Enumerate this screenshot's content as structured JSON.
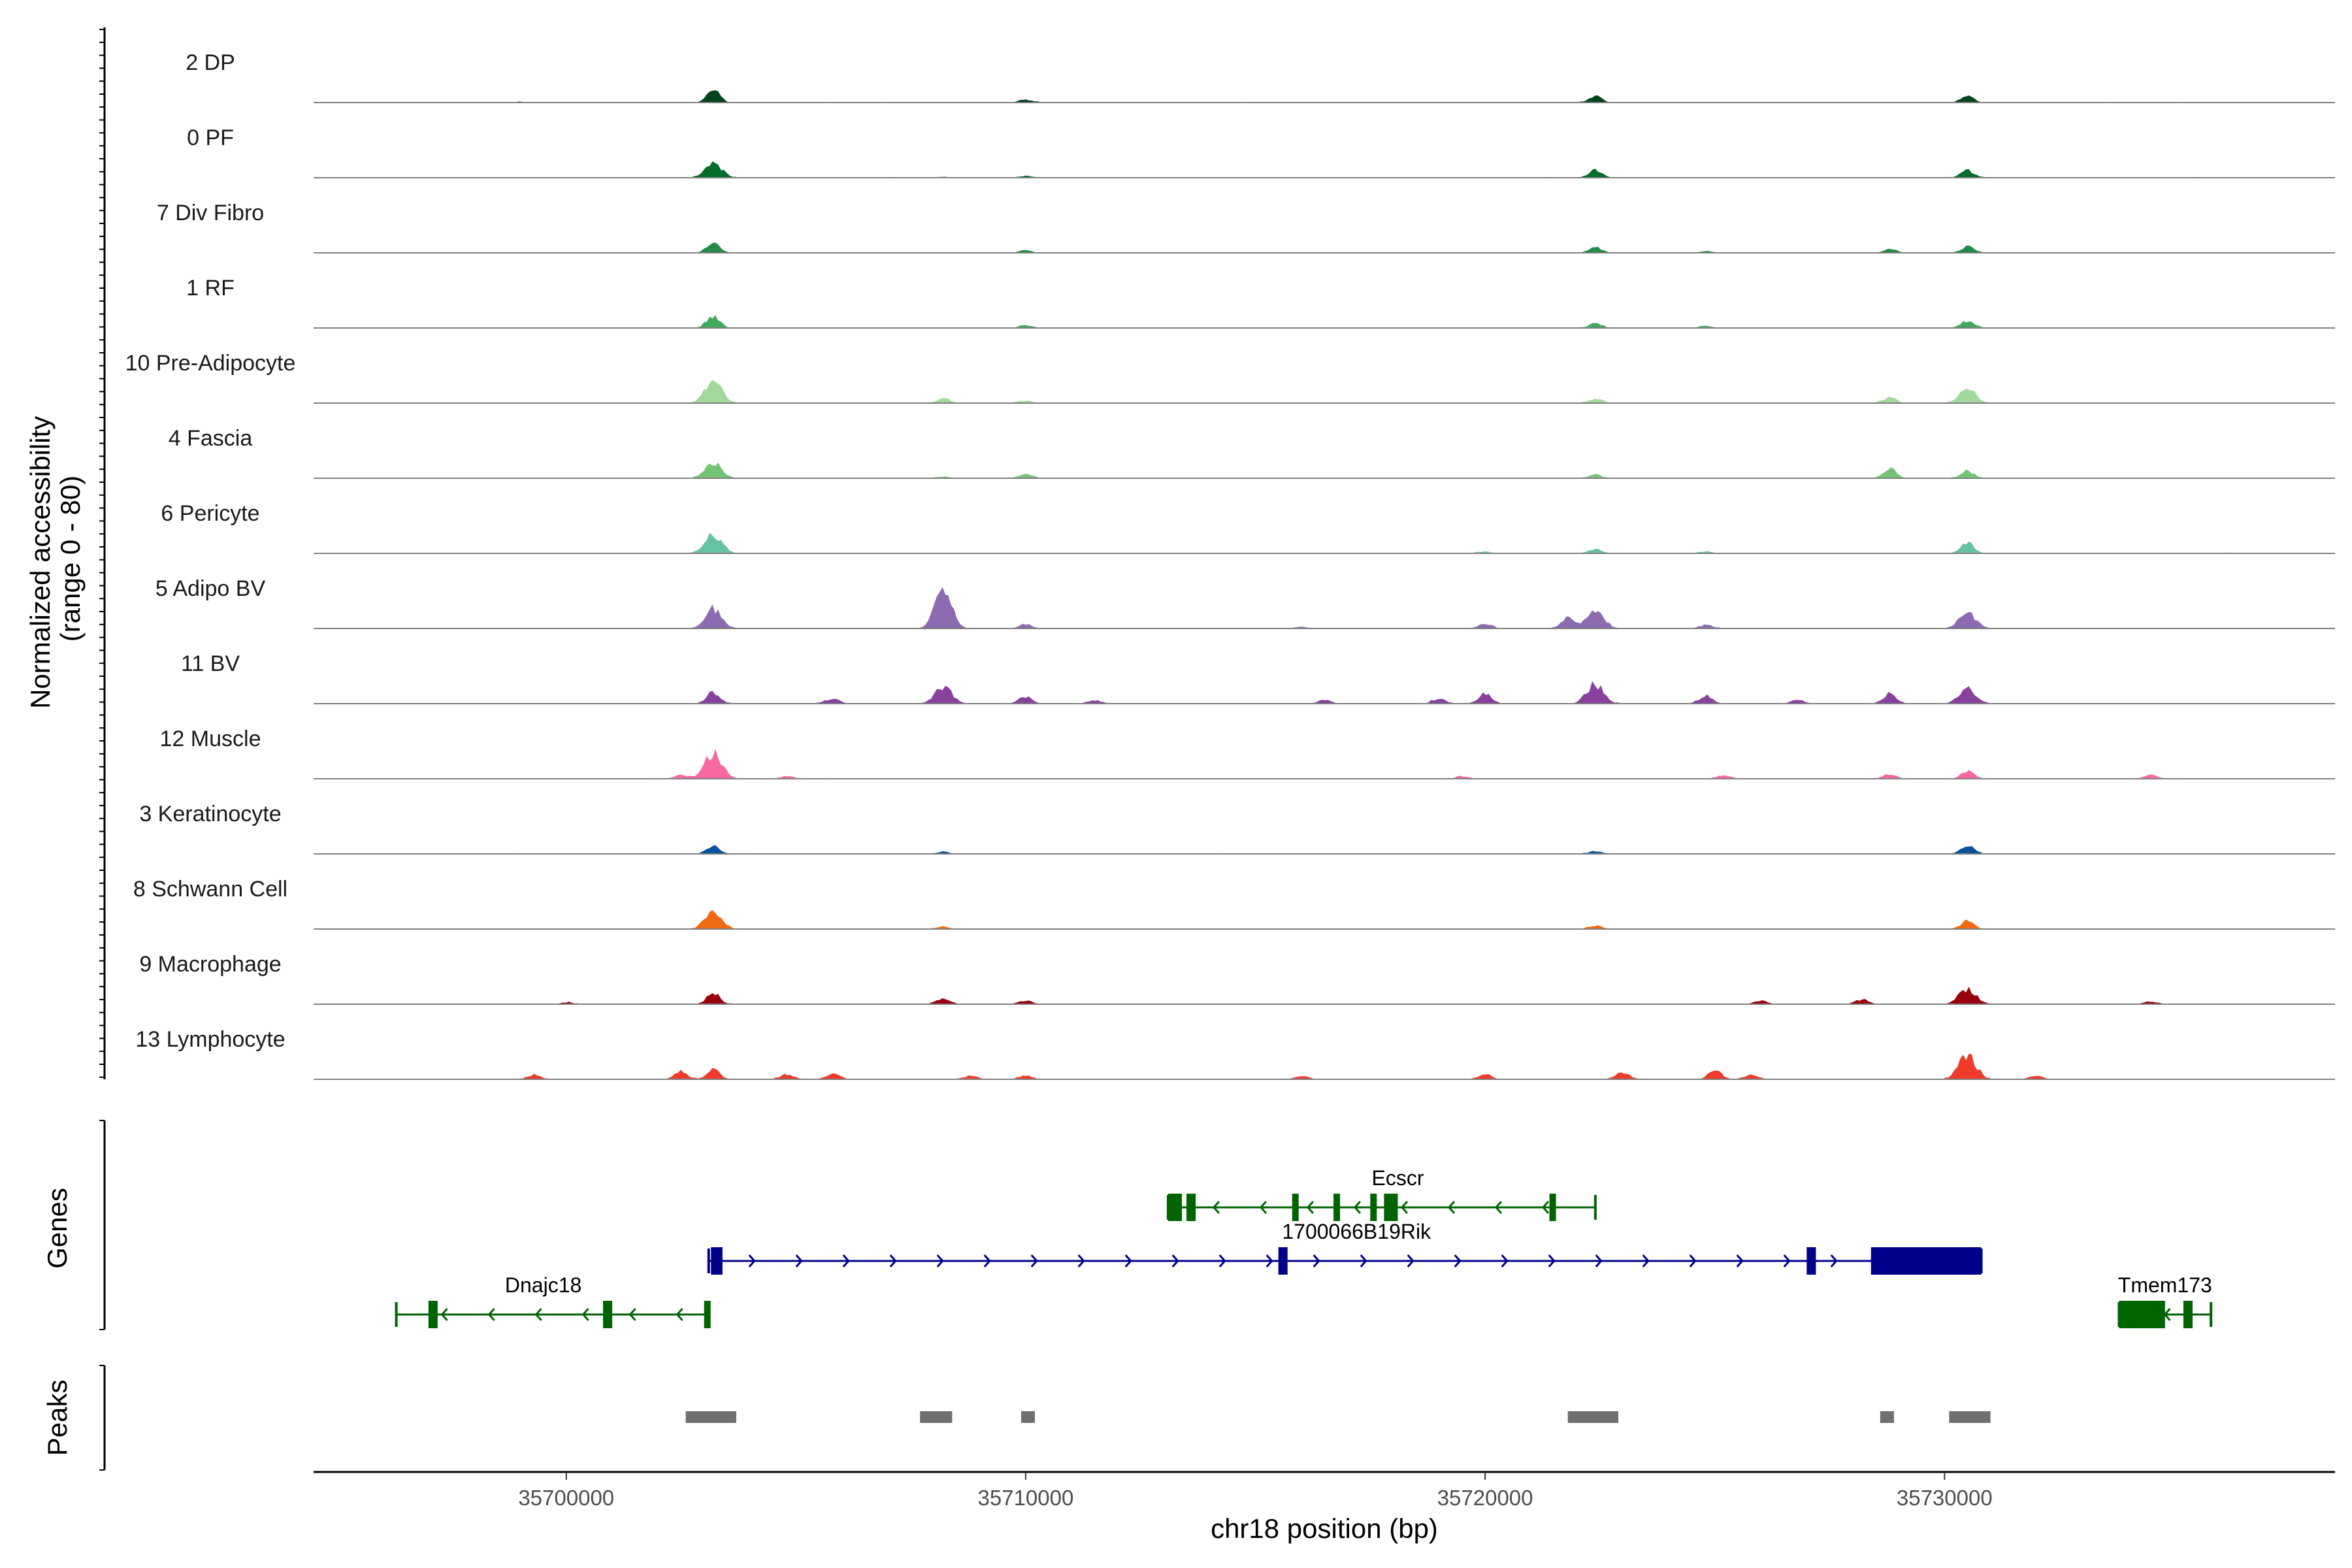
{
  "chart_data": {
    "type": "area",
    "title": "",
    "chromosome": "chr18",
    "xlabel": "chr18 position (bp)",
    "ylabel": "Normalized accessibility\n(range 0 - 80)",
    "y_range": [
      0,
      80
    ],
    "xlim": [
      35694500,
      35738500
    ],
    "x_ticks": [
      35700000,
      35710000,
      35720000,
      35730000
    ],
    "x_tick_labels": [
      "35700000",
      "35710000",
      "35720000",
      "35730000"
    ],
    "tracks": [
      {
        "name": "2 DP",
        "color": "#00441b",
        "peaks": [
          [
            35703200,
            14
          ],
          [
            35722400,
            7
          ],
          [
            35730500,
            7
          ],
          [
            35710000,
            3
          ],
          [
            35699000,
            1
          ]
        ]
      },
      {
        "name": "0 PF",
        "color": "#006d2c",
        "peaks": [
          [
            35703200,
            16
          ],
          [
            35722400,
            9
          ],
          [
            35730500,
            8
          ],
          [
            35710000,
            2
          ],
          [
            35708200,
            1
          ]
        ]
      },
      {
        "name": "7 Div Fibro",
        "color": "#238b45",
        "peaks": [
          [
            35703200,
            11
          ],
          [
            35722400,
            6
          ],
          [
            35730500,
            7
          ],
          [
            35728800,
            4
          ],
          [
            35710000,
            3
          ],
          [
            35724800,
            2
          ]
        ]
      },
      {
        "name": "1 RF",
        "color": "#41ab5d",
        "peaks": [
          [
            35703200,
            14
          ],
          [
            35722400,
            5
          ],
          [
            35730500,
            8
          ],
          [
            35710000,
            3
          ],
          [
            35724800,
            2
          ]
        ]
      },
      {
        "name": "10 Pre-Adipocyte",
        "color": "#a1d99b",
        "peaks": [
          [
            35703200,
            24
          ],
          [
            35722400,
            5
          ],
          [
            35730500,
            16
          ],
          [
            35728800,
            7
          ],
          [
            35708200,
            5
          ],
          [
            35710000,
            3
          ]
        ]
      },
      {
        "name": "4 Fascia",
        "color": "#74c476",
        "peaks": [
          [
            35703200,
            17
          ],
          [
            35722400,
            4
          ],
          [
            35730500,
            8
          ],
          [
            35728800,
            11
          ],
          [
            35710000,
            5
          ],
          [
            35708200,
            2
          ]
        ]
      },
      {
        "name": "6 Pericyte",
        "color": "#66c2a4",
        "peaks": [
          [
            35703200,
            22
          ],
          [
            35722400,
            5
          ],
          [
            35730500,
            13
          ],
          [
            35720000,
            2
          ],
          [
            35724800,
            2
          ]
        ]
      },
      {
        "name": "5 Adipo BV",
        "color": "#8c6bb1",
        "peaks": [
          [
            35703200,
            22
          ],
          [
            35708200,
            42
          ],
          [
            35722400,
            22
          ],
          [
            35721800,
            12
          ],
          [
            35720000,
            6
          ],
          [
            35730500,
            17
          ],
          [
            35724800,
            4
          ],
          [
            35710000,
            5
          ],
          [
            35716000,
            2
          ]
        ]
      },
      {
        "name": "11 BV",
        "color": "#88419d",
        "peaks": [
          [
            35703200,
            13
          ],
          [
            35708200,
            19
          ],
          [
            35722400,
            22
          ],
          [
            35720000,
            11
          ],
          [
            35730500,
            17
          ],
          [
            35728800,
            11
          ],
          [
            35724800,
            9
          ],
          [
            35710000,
            8
          ],
          [
            35705800,
            6
          ],
          [
            35719000,
            6
          ],
          [
            35711500,
            4
          ],
          [
            35716500,
            4
          ],
          [
            35726800,
            4
          ]
        ]
      },
      {
        "name": "12 Muscle",
        "color": "#f768a1",
        "peaks": [
          [
            35703200,
            30
          ],
          [
            35730500,
            9
          ],
          [
            35728800,
            5
          ],
          [
            35702500,
            4
          ],
          [
            35704800,
            3
          ],
          [
            35725200,
            4
          ],
          [
            35734500,
            4
          ],
          [
            35719500,
            3
          ]
        ]
      },
      {
        "name": "3 Keratinocyte",
        "color": "#08519c",
        "peaks": [
          [
            35703200,
            9
          ],
          [
            35730500,
            9
          ],
          [
            35722400,
            3
          ],
          [
            35708200,
            2
          ]
        ]
      },
      {
        "name": "8 Schwann Cell",
        "color": "#f16913",
        "peaks": [
          [
            35703200,
            19
          ],
          [
            35730500,
            9
          ],
          [
            35722400,
            4
          ],
          [
            35708200,
            3
          ],
          [
            35697000,
            2
          ]
        ]
      },
      {
        "name": "9 Macrophage",
        "color": "#99000d",
        "peaks": [
          [
            35703200,
            13
          ],
          [
            35708200,
            7
          ],
          [
            35730500,
            18
          ],
          [
            35710000,
            4
          ],
          [
            35726000,
            4
          ],
          [
            35728200,
            5
          ],
          [
            35734500,
            3
          ],
          [
            35700000,
            2
          ]
        ]
      },
      {
        "name": "13 Lymphocyte",
        "color": "#ef3b2c",
        "peaks": [
          [
            35730500,
            28
          ],
          [
            35703200,
            11
          ],
          [
            35702500,
            8
          ],
          [
            35705800,
            7
          ],
          [
            35708800,
            4
          ],
          [
            35710000,
            4
          ],
          [
            35699300,
            5
          ],
          [
            35720000,
            6
          ],
          [
            35723000,
            8
          ],
          [
            35725000,
            10
          ],
          [
            35725800,
            6
          ],
          [
            35697000,
            4
          ],
          [
            35716000,
            4
          ],
          [
            35732000,
            4
          ],
          [
            35704800,
            6
          ]
        ]
      }
    ],
    "genes": [
      {
        "name": "Dnajc18",
        "strand": "-",
        "start": 35696300,
        "end": 35703100,
        "color": "#006400",
        "row": 2,
        "exons": [
          [
            35697000,
            35697200
          ],
          [
            35700800,
            35701000
          ],
          [
            35703000,
            35703100
          ]
        ]
      },
      {
        "name": "1700066B19Rik",
        "strand": "+",
        "start": 35703100,
        "end": 35730800,
        "color": "#00008b",
        "row": 1,
        "exons": [
          [
            35703150,
            35703400
          ],
          [
            35715500,
            35715700
          ],
          [
            35727000,
            35727200
          ],
          [
            35728400,
            35730800
          ]
        ]
      },
      {
        "name": "Ecscr",
        "strand": "-",
        "start": 35713100,
        "end": 35722400,
        "color": "#006400",
        "row": 0,
        "exons": [
          [
            35713100,
            35713400
          ],
          [
            35713500,
            35713700
          ],
          [
            35715800,
            35715900
          ],
          [
            35716700,
            35716800
          ],
          [
            35717500,
            35717600
          ],
          [
            35717800,
            35718100
          ],
          [
            35721400,
            35721500
          ]
        ]
      },
      {
        "name": "Tmem173",
        "strand": "-",
        "start": 35733800,
        "end": 35735800,
        "color": "#006400",
        "row": 2,
        "exons": [
          [
            35733800,
            35734800
          ],
          [
            35735200,
            35735400
          ]
        ]
      }
    ],
    "peak_regions": [
      [
        35702600,
        35703700
      ],
      [
        35707700,
        35708400
      ],
      [
        35709900,
        35710200
      ],
      [
        35721800,
        35722900
      ],
      [
        35728600,
        35728900
      ],
      [
        35730100,
        35731000
      ]
    ],
    "panels": {
      "genes_label": "Genes",
      "peaks_label": "Peaks"
    },
    "colors": {
      "gene_minus": "#006400",
      "gene_plus": "#00008b",
      "peak_region": "#707070",
      "baseline": "#808080"
    }
  }
}
